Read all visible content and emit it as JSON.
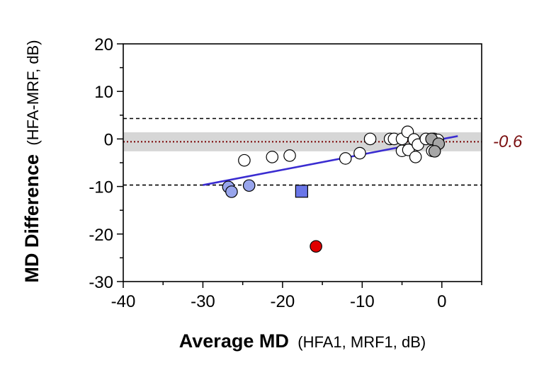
{
  "chart_data": {
    "type": "scatter",
    "xlabel": {
      "main": "Average MD",
      "sub": "(HFA1, MRF1, dB)"
    },
    "ylabel": {
      "main": "MD Difference",
      "sub": "(HFA-MRF, dB)"
    },
    "xlim": [
      -40,
      5
    ],
    "ylim": [
      -30,
      20
    ],
    "x_ticks": [
      -40,
      -30,
      -20,
      -10,
      0
    ],
    "y_ticks": [
      -30,
      -20,
      -10,
      0,
      10,
      20
    ],
    "grid": false,
    "mean_bias": -0.6,
    "mean_label": "-0.6",
    "mean_ci": [
      -2.6,
      1.4
    ],
    "limits_of_agreement": [
      4.3,
      -9.7
    ],
    "trend_line": {
      "x": [
        -30,
        2
      ],
      "y": [
        -9.7,
        0.6
      ]
    },
    "colors": {
      "white_marker": "#ffffff",
      "gray_marker": "#a6a6a6",
      "blue_marker": "#98a5ec",
      "blue_square": "#6a76e8",
      "red_marker": "#e00000",
      "trend_line": "#3a2cd1",
      "mean_line": "#7a0000",
      "ci_band": "#d6d6d6",
      "mean_label": "#7a0f10"
    },
    "points": [
      {
        "x": -26.8,
        "y": -10.1,
        "marker": "circle",
        "fill": "blue"
      },
      {
        "x": -26.4,
        "y": -11.1,
        "marker": "circle",
        "fill": "blue"
      },
      {
        "x": -24.2,
        "y": -9.8,
        "marker": "circle",
        "fill": "blue"
      },
      {
        "x": -24.8,
        "y": -4.5,
        "marker": "circle",
        "fill": "white"
      },
      {
        "x": -21.3,
        "y": -3.8,
        "marker": "circle",
        "fill": "white"
      },
      {
        "x": -19.1,
        "y": -3.5,
        "marker": "circle",
        "fill": "white"
      },
      {
        "x": -17.6,
        "y": -11.0,
        "marker": "square",
        "fill": "bluesquare"
      },
      {
        "x": -15.8,
        "y": -22.6,
        "marker": "circle",
        "fill": "red"
      },
      {
        "x": -12.1,
        "y": -4.1,
        "marker": "circle",
        "fill": "white"
      },
      {
        "x": -10.3,
        "y": -3.0,
        "marker": "circle",
        "fill": "white"
      },
      {
        "x": -9.0,
        "y": 0.0,
        "marker": "circle",
        "fill": "white"
      },
      {
        "x": -6.5,
        "y": 0.0,
        "marker": "circle",
        "fill": "white"
      },
      {
        "x": -6.0,
        "y": 0.0,
        "marker": "circle",
        "fill": "white"
      },
      {
        "x": -5.0,
        "y": 0.0,
        "marker": "circle",
        "fill": "white"
      },
      {
        "x": -5.0,
        "y": -2.5,
        "marker": "circle",
        "fill": "white"
      },
      {
        "x": -4.3,
        "y": 1.5,
        "marker": "circle",
        "fill": "white"
      },
      {
        "x": -4.2,
        "y": -2.3,
        "marker": "circle",
        "fill": "white"
      },
      {
        "x": -3.5,
        "y": -0.1,
        "marker": "circle",
        "fill": "white"
      },
      {
        "x": -3.0,
        "y": -1.2,
        "marker": "circle",
        "fill": "white"
      },
      {
        "x": -3.3,
        "y": -3.8,
        "marker": "circle",
        "fill": "white"
      },
      {
        "x": -2.0,
        "y": 0.0,
        "marker": "circle",
        "fill": "white"
      },
      {
        "x": -1.2,
        "y": -2.5,
        "marker": "circle",
        "fill": "white"
      },
      {
        "x": -1.0,
        "y": 0.0,
        "marker": "circle",
        "fill": "white"
      },
      {
        "x": -0.5,
        "y": -0.2,
        "marker": "circle",
        "fill": "white"
      },
      {
        "x": -1.3,
        "y": 0.0,
        "marker": "circle",
        "fill": "gray"
      },
      {
        "x": -0.4,
        "y": -1.0,
        "marker": "circle",
        "fill": "gray"
      },
      {
        "x": -0.9,
        "y": -2.6,
        "marker": "circle",
        "fill": "gray"
      }
    ]
  }
}
